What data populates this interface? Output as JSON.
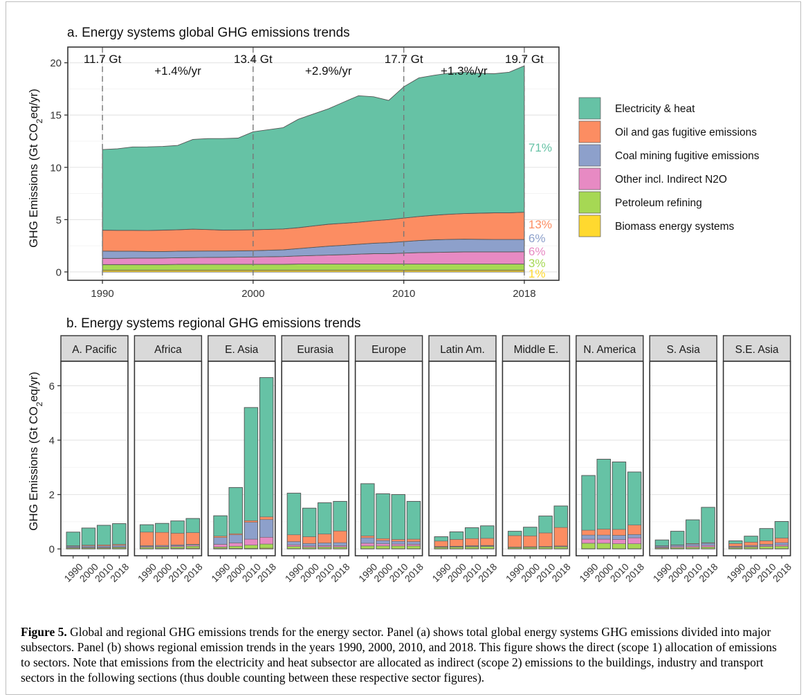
{
  "chart_data": [
    {
      "type": "area",
      "title": "a. Energy systems global GHG emissions trends",
      "ylabel": "GHG Emissions (Gt CO2eq/yr)",
      "ylabel_prefix": "GHG Emissions (Gt CO",
      "ylabel_sub": "2",
      "ylabel_suffix": "eq/yr)",
      "xlabel": "",
      "xlim": [
        1990,
        2018
      ],
      "ylim": [
        0,
        20
      ],
      "x_ticks": [
        "1990",
        "2000",
        "2010",
        "2018"
      ],
      "y_ticks": [
        "0",
        "5",
        "10",
        "15",
        "20"
      ],
      "grid": true,
      "legend_position": "right",
      "x": [
        1990,
        1991,
        1992,
        1993,
        1994,
        1995,
        1996,
        1997,
        1998,
        1999,
        2000,
        2001,
        2002,
        2003,
        2004,
        2005,
        2006,
        2007,
        2008,
        2009,
        2010,
        2011,
        2012,
        2013,
        2014,
        2015,
        2016,
        2017,
        2018
      ],
      "series": [
        {
          "name": "Biomass energy systems",
          "color": "#FFD92F",
          "values": [
            0.15,
            0.15,
            0.15,
            0.15,
            0.15,
            0.15,
            0.15,
            0.15,
            0.15,
            0.15,
            0.15,
            0.15,
            0.15,
            0.15,
            0.15,
            0.15,
            0.15,
            0.15,
            0.15,
            0.15,
            0.15,
            0.15,
            0.15,
            0.15,
            0.15,
            0.15,
            0.15,
            0.15,
            0.15
          ]
        },
        {
          "name": "Petroleum refining",
          "color": "#A6D854",
          "values": [
            0.55,
            0.55,
            0.55,
            0.55,
            0.55,
            0.57,
            0.57,
            0.58,
            0.58,
            0.58,
            0.58,
            0.58,
            0.58,
            0.6,
            0.6,
            0.6,
            0.6,
            0.6,
            0.6,
            0.6,
            0.6,
            0.6,
            0.6,
            0.6,
            0.6,
            0.6,
            0.6,
            0.6,
            0.6
          ]
        },
        {
          "name": "Other incl. Indirect N2O",
          "color": "#E78AC3",
          "values": [
            0.6,
            0.6,
            0.62,
            0.62,
            0.63,
            0.64,
            0.65,
            0.66,
            0.67,
            0.68,
            0.7,
            0.72,
            0.74,
            0.78,
            0.82,
            0.86,
            0.9,
            0.95,
            1.0,
            1.0,
            1.05,
            1.1,
            1.12,
            1.14,
            1.16,
            1.17,
            1.17,
            1.17,
            1.18
          ]
        },
        {
          "name": "Coal mining fugitive emissions",
          "color": "#8DA0CB",
          "values": [
            0.7,
            0.68,
            0.66,
            0.64,
            0.62,
            0.62,
            0.62,
            0.61,
            0.6,
            0.6,
            0.6,
            0.62,
            0.64,
            0.7,
            0.78,
            0.85,
            0.9,
            0.95,
            1.0,
            1.05,
            1.1,
            1.15,
            1.2,
            1.22,
            1.22,
            1.2,
            1.18,
            1.18,
            1.18
          ]
        },
        {
          "name": "Oil and gas fugitive emissions",
          "color": "#FC8D62",
          "values": [
            2.0,
            2.0,
            2.0,
            2.0,
            2.05,
            2.05,
            2.1,
            2.05,
            2.0,
            2.0,
            2.0,
            2.0,
            2.0,
            2.0,
            2.05,
            2.1,
            2.1,
            2.1,
            2.15,
            2.2,
            2.25,
            2.3,
            2.35,
            2.4,
            2.45,
            2.5,
            2.55,
            2.55,
            2.6
          ]
        },
        {
          "name": "Electricity & heat",
          "color": "#66C2A5",
          "values": [
            7.7,
            7.8,
            7.97,
            8.0,
            8.0,
            8.07,
            8.58,
            8.7,
            8.75,
            8.79,
            9.37,
            9.53,
            9.69,
            10.37,
            10.7,
            11.04,
            11.58,
            12.1,
            11.85,
            11.4,
            12.55,
            13.25,
            13.38,
            13.49,
            13.52,
            13.38,
            13.3,
            13.45,
            14.0
          ]
        }
      ],
      "segment_labels": [
        {
          "x_index": 0,
          "value": "11.7 Gt"
        },
        {
          "x_index": 1,
          "value": "13.4 Gt"
        },
        {
          "x_index": 2,
          "value": "17.7 Gt"
        },
        {
          "x_index": 3,
          "value": "19.7 Gt"
        }
      ],
      "growth_labels": [
        "+1.4%/yr",
        "+2.9%/yr",
        "+1.3%/yr"
      ],
      "share_labels": [
        {
          "series": "Electricity & heat",
          "value": "71%"
        },
        {
          "series": "Oil and gas fugitive emissions",
          "value": "13%"
        },
        {
          "series": "Coal mining fugitive emissions",
          "value": "6%"
        },
        {
          "series": "Other incl. Indirect N2O",
          "value": "6%"
        },
        {
          "series": "Petroleum refining",
          "value": "3%"
        },
        {
          "series": "Biomass energy systems",
          "value": "1%"
        }
      ]
    },
    {
      "type": "bar",
      "stacked": true,
      "title": "b. Energy systems regional GHG emissions trends",
      "ylabel": "GHG Emissions (Gt CO2eq/yr)",
      "ylabel_prefix": "GHG Emissions (Gt CO",
      "ylabel_sub": "2",
      "ylabel_suffix": "eq/yr)",
      "ylim": [
        0,
        7
      ],
      "y_ticks": [
        "0",
        "2",
        "4",
        "6"
      ],
      "categories": [
        "1990",
        "2000",
        "2010",
        "2018"
      ],
      "stack_order": [
        "Biomass energy systems",
        "Petroleum refining",
        "Other incl. Indirect N2O",
        "Coal mining fugitive emissions",
        "Oil and gas fugitive emissions",
        "Electricity & heat"
      ],
      "facets": [
        {
          "name": "A. Pacific",
          "bars": [
            [
              0.01,
              0.03,
              0.02,
              0.04,
              0.02,
              0.5
            ],
            [
              0.01,
              0.03,
              0.02,
              0.05,
              0.03,
              0.63
            ],
            [
              0.01,
              0.03,
              0.02,
              0.05,
              0.04,
              0.72
            ],
            [
              0.01,
              0.04,
              0.02,
              0.06,
              0.04,
              0.76
            ]
          ]
        },
        {
          "name": "Africa",
          "bars": [
            [
              0.01,
              0.05,
              0.03,
              0.03,
              0.5,
              0.27
            ],
            [
              0.02,
              0.05,
              0.03,
              0.03,
              0.48,
              0.33
            ],
            [
              0.02,
              0.06,
              0.04,
              0.03,
              0.43,
              0.45
            ],
            [
              0.03,
              0.07,
              0.04,
              0.03,
              0.43,
              0.52
            ]
          ]
        },
        {
          "name": "E. Asia",
          "bars": [
            [
              0.02,
              0.05,
              0.1,
              0.25,
              0.05,
              0.75
            ],
            [
              0.02,
              0.08,
              0.12,
              0.3,
              0.04,
              1.7
            ],
            [
              0.02,
              0.12,
              0.22,
              0.62,
              0.06,
              4.16
            ],
            [
              0.03,
              0.15,
              0.25,
              0.65,
              0.1,
              5.12
            ]
          ]
        },
        {
          "name": "Eurasia",
          "bars": [
            [
              0.01,
              0.08,
              0.06,
              0.12,
              0.25,
              1.53
            ],
            [
              0.01,
              0.05,
              0.05,
              0.09,
              0.25,
              1.05
            ],
            [
              0.01,
              0.06,
              0.05,
              0.1,
              0.33,
              1.15
            ],
            [
              0.01,
              0.06,
              0.05,
              0.11,
              0.43,
              1.09
            ]
          ]
        },
        {
          "name": "Europe",
          "bars": [
            [
              0.01,
              0.1,
              0.1,
              0.2,
              0.07,
              1.92
            ],
            [
              0.01,
              0.1,
              0.08,
              0.12,
              0.07,
              1.65
            ],
            [
              0.01,
              0.1,
              0.07,
              0.1,
              0.07,
              1.65
            ],
            [
              0.01,
              0.1,
              0.06,
              0.1,
              0.09,
              1.39
            ]
          ]
        },
        {
          "name": "Latin Am.",
          "bars": [
            [
              0.01,
              0.05,
              0.02,
              0.01,
              0.2,
              0.16
            ],
            [
              0.01,
              0.06,
              0.02,
              0.01,
              0.25,
              0.28
            ],
            [
              0.01,
              0.07,
              0.02,
              0.02,
              0.26,
              0.4
            ],
            [
              0.01,
              0.08,
              0.02,
              0.02,
              0.26,
              0.46
            ]
          ]
        },
        {
          "name": "Middle E.",
          "bars": [
            [
              0.01,
              0.04,
              0.01,
              0.01,
              0.42,
              0.16
            ],
            [
              0.01,
              0.05,
              0.01,
              0.01,
              0.4,
              0.32
            ],
            [
              0.01,
              0.06,
              0.01,
              0.01,
              0.5,
              0.62
            ],
            [
              0.01,
              0.07,
              0.02,
              0.01,
              0.68,
              0.79
            ]
          ]
        },
        {
          "name": "N. America",
          "bars": [
            [
              0.01,
              0.2,
              0.15,
              0.15,
              0.18,
              2.01
            ],
            [
              0.01,
              0.2,
              0.15,
              0.15,
              0.22,
              2.57
            ],
            [
              0.01,
              0.18,
              0.16,
              0.15,
              0.22,
              2.48
            ],
            [
              0.01,
              0.18,
              0.22,
              0.12,
              0.35,
              1.95
            ]
          ]
        },
        {
          "name": "S. Asia",
          "bars": [
            [
              0.01,
              0.03,
              0.03,
              0.04,
              0.01,
              0.21
            ],
            [
              0.01,
              0.04,
              0.04,
              0.05,
              0.01,
              0.5
            ],
            [
              0.01,
              0.05,
              0.05,
              0.07,
              0.02,
              0.87
            ],
            [
              0.01,
              0.06,
              0.06,
              0.08,
              0.02,
              1.3
            ]
          ]
        },
        {
          "name": "S.E. Asia",
          "bars": [
            [
              0.01,
              0.04,
              0.03,
              0.02,
              0.1,
              0.1
            ],
            [
              0.01,
              0.06,
              0.03,
              0.03,
              0.12,
              0.22
            ],
            [
              0.01,
              0.08,
              0.04,
              0.04,
              0.13,
              0.45
            ],
            [
              0.01,
              0.09,
              0.05,
              0.08,
              0.17,
              0.61
            ]
          ]
        }
      ]
    }
  ],
  "caption": {
    "label": "Figure 5.",
    "text": " Global and regional GHG emissions trends for the energy sector. Panel (a) shows total global energy systems GHG emissions divided into major subsectors. Panel (b) shows regional emission trends in the years 1990, 2000, 2010, and 2018. This figure shows the direct (scope 1) allocation of emissions to sectors. Note that emissions from the electricity and heat subsector are allocated as indirect (scope 2) emissions to the buildings, industry and transport sectors in the following sections (thus double counting between these respective sector figures)."
  }
}
